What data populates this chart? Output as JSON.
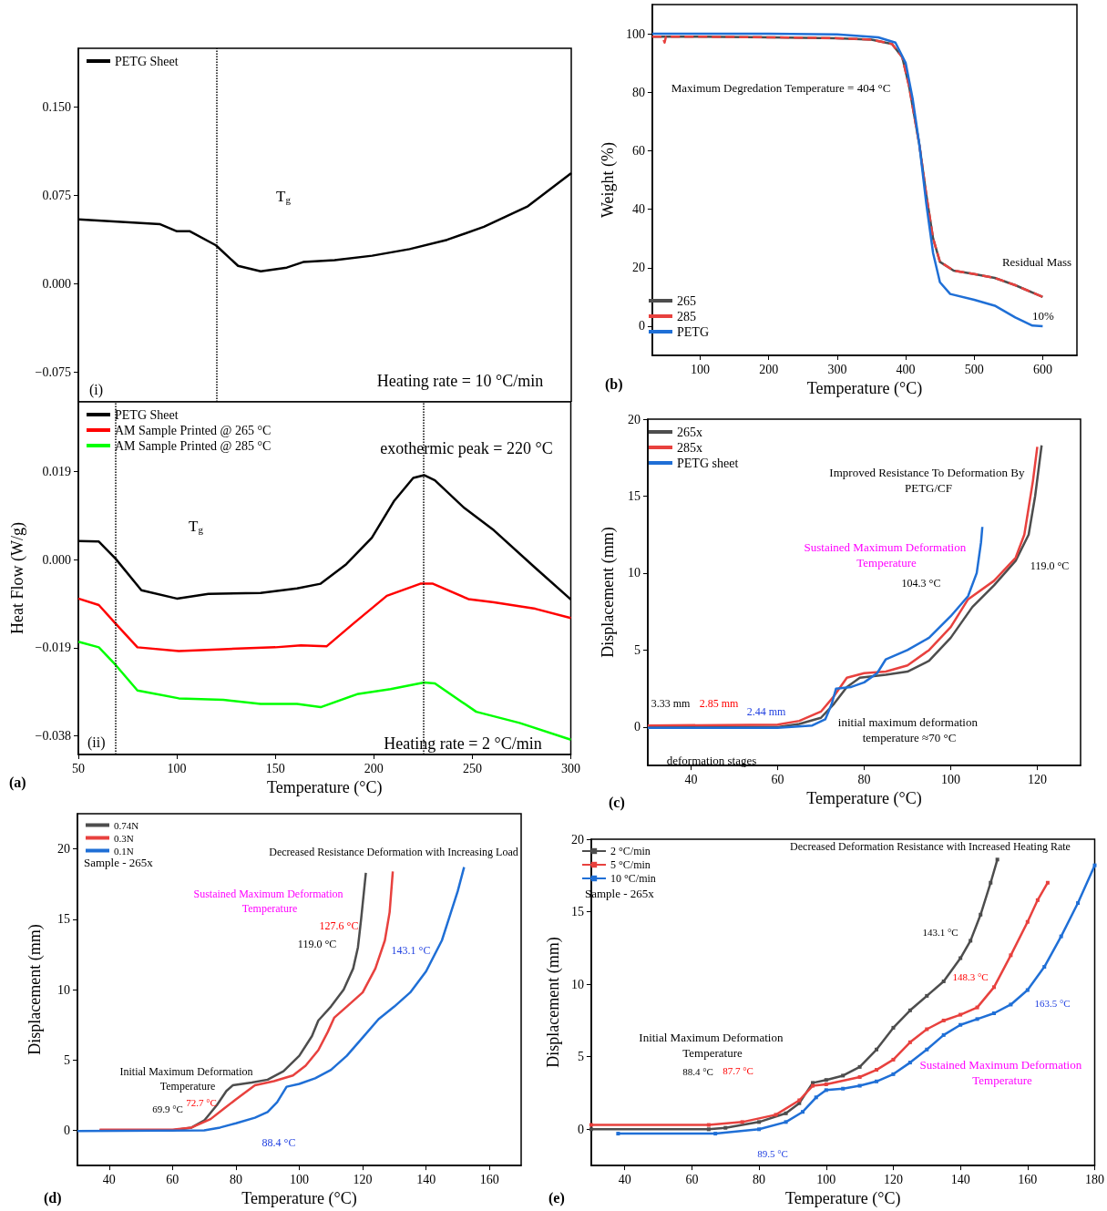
{
  "chart_data": [
    {
      "type": "line",
      "xlim": [
        50,
        300
      ],
      "xticks": [
        50,
        100,
        150,
        200,
        250,
        300
      ],
      "ylim": [
        -0.1,
        0.2
      ],
      "yticks": [
        {
          "value": -0.075,
          "label": "−0.075"
        },
        {
          "value": 0,
          "label": "0.000"
        },
        0.075,
        {
          "value": 0.15,
          "label": "0.150"
        }
      ],
      "tick_labels": "y",
      "legend": "top left",
      "series": [
        {
          "name": "PETG Sheet",
          "color": "#000000",
          "x": [
            50,
            91.5,
            100,
            106.6,
            119.8,
            131,
            142.5,
            155.7,
            164,
            180,
            199,
            218,
            237,
            255.7,
            278,
            300
          ],
          "values": [
            0.0548,
            0.0507,
            0.0447,
            0.0447,
            0.0328,
            0.0154,
            0.0107,
            0.0139,
            0.0186,
            0.0202,
            0.024,
            0.0296,
            0.0375,
            0.0485,
            0.066,
            0.094
          ]
        }
      ],
      "ref_lines": [
        {
          "axis": "x",
          "value": 120,
          "color": "#000000",
          "line_style": "dotted"
        }
      ],
      "annotations": [
        "T$_{g}$",
        "Heating rate = 10 °C/min",
        "(i)"
      ]
    },
    {
      "type": "line",
      "xlabel": "Temperature (°C)",
      "ylabel": "Heat Flow (W/g)",
      "xlim": [
        50,
        300
      ],
      "xticks": [
        50,
        100,
        150,
        200,
        250,
        300
      ],
      "ylim": [
        -0.042,
        0.034
      ],
      "yticks": [
        {
          "value": -0.038,
          "label": "−0.038"
        },
        {
          "value": -0.019,
          "label": "−0.019"
        },
        {
          "value": 0,
          "label": "0.000"
        },
        0.019
      ],
      "legend": "top left",
      "series": [
        {
          "name": "PETG Sheet",
          "color": "#000000",
          "x": [
            50,
            60.4,
            68.9,
            82,
            100,
            116,
            142.5,
            161,
            173,
            186,
            199,
            210.4,
            220,
            225.5,
            231,
            246,
            261,
            282,
            300
          ],
          "values": [
            0.004,
            0.0039,
            0.0002,
            -0.0066,
            -0.0084,
            -0.0074,
            -0.0072,
            -0.0062,
            -0.0052,
            -0.001,
            0.0047,
            0.0127,
            0.0176,
            0.0182,
            0.0171,
            0.0111,
            0.0063,
            -0.0018,
            -0.0086
          ]
        },
        {
          "name": "AM Sample Printed @ 265 °C",
          "color": "#ff0000",
          "x": [
            50,
            60.4,
            68.9,
            80,
            101,
            123.6,
            150,
            163,
            176,
            189.6,
            206.6,
            223.6,
            230,
            248,
            261,
            282,
            300
          ],
          "values": [
            -0.0084,
            -0.0098,
            -0.0138,
            -0.0189,
            -0.0197,
            -0.0193,
            -0.0189,
            -0.0185,
            -0.0187,
            -0.0138,
            -0.0078,
            -0.0052,
            -0.0052,
            -0.0085,
            -0.0092,
            -0.0106,
            -0.0126
          ]
        },
        {
          "name": "AM Sample Printed @ 285 °C",
          "color": "#00ff00",
          "x": [
            50,
            60.4,
            68.9,
            80,
            101,
            123.6,
            142.5,
            161,
            173,
            191.5,
            208.5,
            225.5,
            231,
            252,
            274,
            300
          ],
          "values": [
            -0.0177,
            -0.0189,
            -0.0227,
            -0.0282,
            -0.0299,
            -0.0302,
            -0.0311,
            -0.0311,
            -0.0318,
            -0.029,
            -0.0279,
            -0.0265,
            -0.0267,
            -0.0328,
            -0.0352,
            -0.0388
          ]
        }
      ],
      "ref_lines": [
        {
          "axis": "x",
          "value": 69,
          "color": "#000000",
          "line_style": "dotted"
        },
        {
          "axis": "x",
          "value": 225,
          "color": "#000000",
          "line_style": "dotted"
        }
      ],
      "annotations": [
        "T$_{g}$",
        "exothermic peak = 220 °C",
        "Heating rate = 2 °C/min",
        "(ii)",
        "(a)"
      ]
    },
    {
      "type": "line",
      "xlabel": "Temperature (°C)",
      "ylabel": "Weight (%)",
      "xlim": [
        30,
        650
      ],
      "xticks": [
        100,
        200,
        300,
        400,
        500,
        600
      ],
      "ylim": [
        -10,
        110
      ],
      "yticks": [
        0,
        20,
        40,
        60,
        80,
        100
      ],
      "legend": "bottom left",
      "series": [
        {
          "name": "265",
          "color": "#4d4d4d",
          "x": [
            30,
            100,
            200,
            300,
            350,
            380,
            395,
            405,
            420,
            430,
            440,
            450,
            470,
            500,
            530,
            560,
            600
          ],
          "values": [
            99,
            99,
            98.8,
            98.5,
            98,
            96.5,
            92,
            82,
            62,
            45,
            30,
            22,
            19,
            17.8,
            16.5,
            14,
            10
          ]
        },
        {
          "name": "285",
          "color": "#e8413e",
          "line_style": "dashed",
          "x": [
            30,
            45,
            48,
            50,
            100,
            200,
            300,
            350,
            380,
            395,
            405,
            420,
            430,
            440,
            450,
            470,
            500,
            530,
            560,
            600
          ],
          "values": [
            99,
            99,
            97,
            99,
            99,
            98.8,
            98.5,
            98,
            96.5,
            92,
            82,
            62,
            45,
            30,
            22,
            19,
            17.8,
            16.5,
            14,
            10
          ]
        },
        {
          "name": "PETG",
          "color": "#1f6fd6",
          "x": [
            30,
            200,
            300,
            360,
            385,
            400,
            410,
            420,
            430,
            440,
            450,
            465,
            500,
            530,
            560,
            585,
            600
          ],
          "values": [
            100,
            100,
            99.8,
            98.8,
            97,
            90,
            78,
            62,
            42,
            25,
            15,
            11,
            9,
            7,
            3,
            0.2,
            0
          ]
        }
      ],
      "annotations": [
        "Maximum Degredation Temperature = 404 °C",
        "Residual Mass",
        "10%",
        "(b)"
      ]
    },
    {
      "type": "line",
      "xlabel": "Temperature (°C)",
      "ylabel": "Displacement (mm)",
      "xlim": [
        30,
        130
      ],
      "xticks": [
        40,
        60,
        80,
        100,
        120
      ],
      "ylim": [
        -2.5,
        20
      ],
      "yticks": [
        0,
        5,
        10,
        15,
        20
      ],
      "legend": "top left",
      "series": [
        {
          "name": "265x",
          "color": "#4d4d4d",
          "x": [
            30,
            60,
            65,
            70,
            73,
            76,
            79,
            85,
            90,
            95,
            100,
            105,
            110,
            115,
            118,
            119.5,
            121
          ],
          "values": [
            0,
            0,
            0.2,
            0.6,
            1.5,
            2.6,
            3.2,
            3.4,
            3.6,
            4.3,
            5.8,
            7.8,
            9.2,
            10.8,
            12.5,
            15,
            18.3
          ]
        },
        {
          "name": "285x",
          "color": "#e8413e",
          "x": [
            30,
            60,
            65,
            70,
            73,
            76,
            80,
            85,
            90,
            95,
            100,
            104,
            110,
            115,
            117,
            119,
            120
          ],
          "values": [
            0.1,
            0.15,
            0.4,
            1,
            2,
            3.2,
            3.5,
            3.6,
            4,
            5,
            6.5,
            8.3,
            9.5,
            11,
            12.5,
            16,
            18.2
          ]
        },
        {
          "name": "PETG sheet",
          "color": "#1f6fd6",
          "x": [
            30,
            60,
            68,
            71,
            72.5,
            73.5,
            77,
            80,
            83,
            85,
            90,
            95,
            100,
            104,
            106,
            107,
            107.3
          ],
          "values": [
            -0.05,
            -0.05,
            0.1,
            0.5,
            1.5,
            2.5,
            2.6,
            2.9,
            3.5,
            4.4,
            5,
            5.8,
            7.2,
            8.5,
            10,
            12,
            13
          ]
        }
      ],
      "annotations": [
        "Improved Resistance To Deformation By PETG/CF",
        "Sustained Maximum Deformation Temperature",
        "104.3 °C",
        "119.0 °C",
        "3.33 mm",
        "2.85 mm",
        "2.44 mm",
        "initial maximum deformation temperature ≈70 °C",
        "deformation stages",
        "(c)"
      ]
    },
    {
      "type": "line",
      "xlabel": "Temperature (°C)",
      "ylabel": "Displacement (mm)",
      "xlim": [
        30,
        170
      ],
      "xticks": [
        40,
        60,
        80,
        100,
        120,
        140,
        160
      ],
      "ylim": [
        -2.5,
        22.5
      ],
      "yticks": [
        0,
        5,
        10,
        15,
        20
      ],
      "legend": "top left",
      "series": [
        {
          "name": "0.74N",
          "color": "#4d4d4d",
          "x": [
            37,
            60,
            66,
            70,
            74,
            77,
            79,
            85,
            90,
            95,
            100,
            104,
            106,
            110,
            114,
            117,
            118.5,
            119.5,
            121
          ],
          "values": [
            0,
            0,
            0.2,
            0.7,
            1.8,
            2.8,
            3.2,
            3.4,
            3.6,
            4.2,
            5.3,
            6.7,
            7.8,
            8.8,
            10,
            11.5,
            13,
            15,
            18.3
          ]
        },
        {
          "name": "0.3N",
          "color": "#e8413e",
          "x": [
            37,
            60,
            66,
            72,
            76,
            80,
            86,
            92,
            98,
            102,
            106,
            109,
            111,
            115,
            120,
            124,
            127,
            128.5,
            129.5
          ],
          "values": [
            0.05,
            0.05,
            0.2,
            0.8,
            1.5,
            2.2,
            3.2,
            3.5,
            3.9,
            4.6,
            5.7,
            7,
            8,
            8.8,
            9.8,
            11.5,
            13.5,
            15.5,
            18.4
          ]
        },
        {
          "name": "0.1N",
          "color": "#1f6fd6",
          "x": [
            30,
            70,
            75,
            80,
            86,
            90,
            93,
            96,
            100,
            105,
            110,
            115,
            120,
            125,
            130,
            135,
            140,
            145,
            150,
            152
          ],
          "values": [
            -0.05,
            0,
            0.2,
            0.5,
            0.9,
            1.3,
            2,
            3.1,
            3.3,
            3.7,
            4.3,
            5.3,
            6.6,
            7.9,
            8.8,
            9.8,
            11.3,
            13.5,
            17,
            18.7
          ]
        }
      ],
      "annotations": [
        "Sample - 265x",
        "Decreased Resistance Deformation with Increasing Load",
        "Sustained Maximum Deformation Temperature",
        "127.6 °C",
        "119.0 °C",
        "143.1 °C",
        "Initial Maximum Deformation Temperature",
        "69.9 °C",
        "72.7 °C",
        "88.4 °C",
        "(d)"
      ]
    },
    {
      "type": "line",
      "xlabel": "Temperature (°C)",
      "ylabel": "Displacement (mm)",
      "xlim": [
        30,
        180
      ],
      "xticks": [
        40,
        60,
        80,
        100,
        120,
        140,
        160,
        180
      ],
      "ylim": [
        -2.5,
        20
      ],
      "yticks": [
        0,
        5,
        10,
        15,
        20
      ],
      "legend": "top left",
      "marker": "square",
      "series": [
        {
          "name": "2 °C/min",
          "color": "#4d4d4d",
          "x": [
            30,
            65,
            70,
            80,
            88,
            92,
            96,
            100,
            105,
            110,
            115,
            120,
            125,
            130,
            135,
            140,
            143,
            146,
            149,
            151
          ],
          "values": [
            0,
            0,
            0.1,
            0.5,
            1.1,
            1.8,
            3.2,
            3.4,
            3.7,
            4.3,
            5.5,
            7,
            8.2,
            9.2,
            10.2,
            11.8,
            13,
            14.8,
            17,
            18.6
          ]
        },
        {
          "name": "5 °C/min",
          "color": "#e8413e",
          "x": [
            30,
            65,
            75,
            85,
            92,
            96,
            100,
            110,
            115,
            120,
            125,
            130,
            135,
            140,
            145,
            150,
            155,
            160,
            163,
            166
          ],
          "values": [
            0.3,
            0.3,
            0.5,
            1,
            2,
            3,
            3.1,
            3.6,
            4.1,
            4.8,
            6,
            6.9,
            7.5,
            7.9,
            8.4,
            9.8,
            12,
            14.3,
            15.8,
            17
          ]
        },
        {
          "name": "10 °C/min",
          "color": "#1f6fd6",
          "x": [
            38,
            67,
            80,
            88,
            93,
            97,
            100,
            105,
            110,
            115,
            120,
            125,
            130,
            135,
            140,
            145,
            150,
            155,
            160,
            165,
            170,
            175,
            180
          ],
          "values": [
            -0.3,
            -0.3,
            0,
            0.5,
            1.2,
            2.2,
            2.7,
            2.8,
            3,
            3.3,
            3.8,
            4.6,
            5.5,
            6.5,
            7.2,
            7.6,
            8,
            8.6,
            9.6,
            11.2,
            13.3,
            15.6,
            18.2
          ]
        }
      ],
      "annotations": [
        "Sample - 265x",
        "Decreased Deformation Resistance with Increased Heating Rate",
        "143.1 °C",
        "148.3 °C",
        "163.5 °C",
        "Initial Maximum Deformation Temperature",
        "88.4 °C",
        "87.7 °C",
        "89.5 °C",
        "Sustained Maximum Deformation Temperature",
        "(e)"
      ]
    }
  ]
}
